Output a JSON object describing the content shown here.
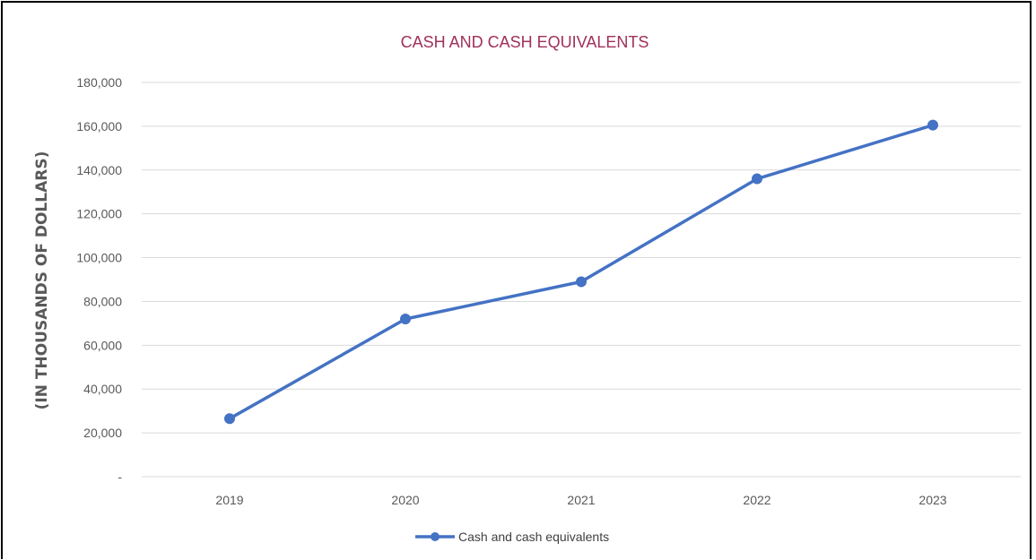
{
  "chart_data": {
    "type": "line",
    "title": "CASH AND CASH EQUIVALENTS",
    "ylabel": "(IN THOUSANDS OF DOLLARS)",
    "xlabel": "",
    "categories": [
      "2019",
      "2020",
      "2021",
      "2022",
      "2023"
    ],
    "series": [
      {
        "name": "Cash and cash equivalents",
        "values": [
          26500,
          72000,
          89000,
          136000,
          160500
        ]
      }
    ],
    "ylim": [
      0,
      180000
    ],
    "yticks": [
      0,
      20000,
      40000,
      60000,
      80000,
      100000,
      120000,
      140000,
      160000,
      180000
    ],
    "ytick_labels": [
      "-",
      "20,000",
      "40,000",
      "60,000",
      "80,000",
      "100,000",
      "120,000",
      "140,000",
      "160,000",
      "180,000"
    ],
    "grid": true,
    "legend_position": "bottom",
    "colors": {
      "line": "#4472c4",
      "title": "#a0305a",
      "grid": "#d9d9d9",
      "tick": "#595959"
    }
  }
}
